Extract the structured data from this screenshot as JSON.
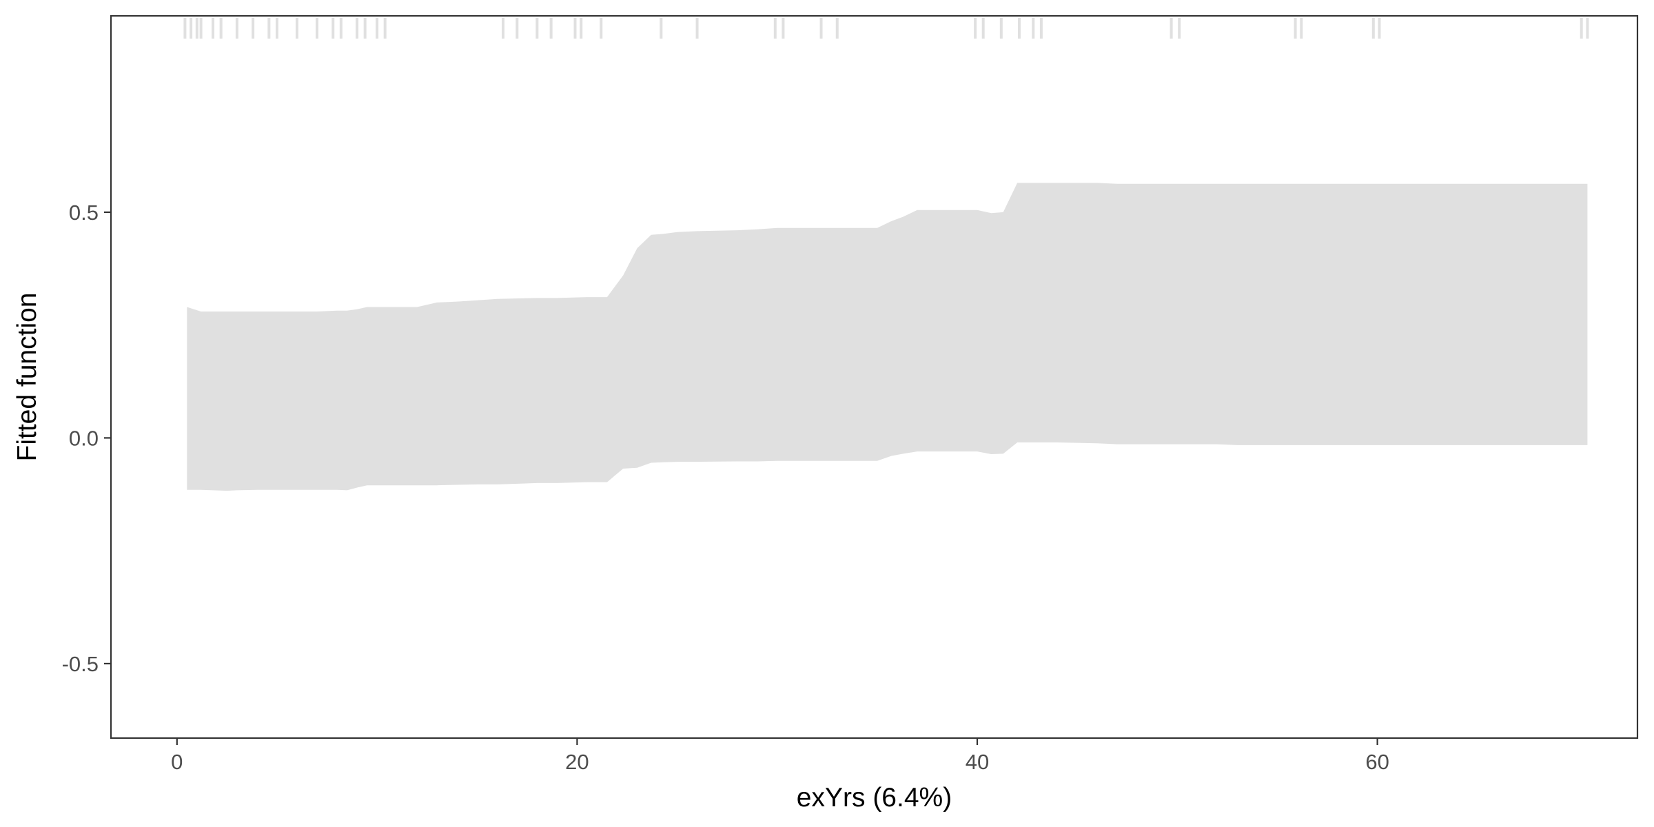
{
  "chart_data": {
    "type": "area",
    "title": "",
    "xlabel": "exYrs  (6.4%)",
    "ylabel": "Fitted function",
    "xlim": [
      -3.3,
      73.0
    ],
    "ylim": [
      -0.665,
      0.935
    ],
    "x_ticks": [
      0,
      20,
      40,
      60
    ],
    "x_tick_labels": [
      "0",
      "20",
      "40",
      "60"
    ],
    "y_ticks": [
      -0.5,
      0.0,
      0.5
    ],
    "y_tick_labels": [
      "-0.5",
      "0.0",
      "0.5"
    ],
    "grid": false,
    "legend": "none",
    "colors": {
      "band": "#e0e0e0",
      "rug": "#e0e0e0",
      "axis": "#333333",
      "tick_text": "#4d4d4d"
    },
    "band": {
      "x": [
        0.5,
        1.2,
        2.5,
        3.0,
        4.0,
        7.0,
        8.0,
        8.5,
        9.0,
        9.5,
        10.5,
        12.0,
        13.0,
        14.0,
        15.0,
        16.0,
        18.0,
        19.0,
        20.5,
        21.5,
        22.3,
        23.0,
        23.7,
        24.3,
        25.0,
        26.0,
        28.0,
        29.0,
        30.0,
        35.0,
        35.7,
        36.3,
        37.0,
        40.0,
        40.7,
        41.3,
        42.0,
        42.6,
        44.0,
        46.0,
        47.0,
        50.0,
        52.0,
        53.0,
        60.0,
        70.5
      ],
      "upper": [
        0.29,
        0.28,
        0.28,
        0.28,
        0.28,
        0.28,
        0.282,
        0.282,
        0.285,
        0.29,
        0.29,
        0.29,
        0.3,
        0.302,
        0.305,
        0.308,
        0.31,
        0.31,
        0.312,
        0.312,
        0.36,
        0.42,
        0.45,
        0.452,
        0.456,
        0.458,
        0.46,
        0.462,
        0.465,
        0.465,
        0.48,
        0.49,
        0.505,
        0.505,
        0.498,
        0.5,
        0.565,
        0.565,
        0.565,
        0.565,
        0.563,
        0.563,
        0.563,
        0.563,
        0.563,
        0.563
      ],
      "lower": [
        -0.115,
        -0.115,
        -0.117,
        -0.116,
        -0.115,
        -0.115,
        -0.115,
        -0.116,
        -0.11,
        -0.105,
        -0.105,
        -0.105,
        -0.105,
        -0.104,
        -0.103,
        -0.103,
        -0.1,
        -0.1,
        -0.098,
        -0.098,
        -0.068,
        -0.066,
        -0.055,
        -0.054,
        -0.053,
        -0.053,
        -0.052,
        -0.052,
        -0.051,
        -0.051,
        -0.04,
        -0.035,
        -0.03,
        -0.03,
        -0.036,
        -0.035,
        -0.01,
        -0.01,
        -0.01,
        -0.012,
        -0.014,
        -0.014,
        -0.014,
        -0.016,
        -0.016,
        -0.016
      ]
    },
    "rug": [
      0.4,
      0.7,
      1.0,
      1.2,
      1.8,
      2.2,
      3.0,
      3.8,
      4.6,
      5.0,
      6.0,
      7.0,
      7.8,
      8.2,
      9.0,
      9.4,
      10.0,
      10.4,
      16.3,
      17.0,
      18.0,
      18.7,
      19.9,
      20.2,
      21.2,
      24.2,
      26.0,
      29.9,
      30.3,
      32.2,
      33.0,
      39.9,
      40.3,
      41.2,
      42.1,
      42.8,
      43.2,
      49.7,
      50.1,
      55.9,
      56.2,
      59.8,
      60.1,
      70.2,
      70.5
    ]
  }
}
